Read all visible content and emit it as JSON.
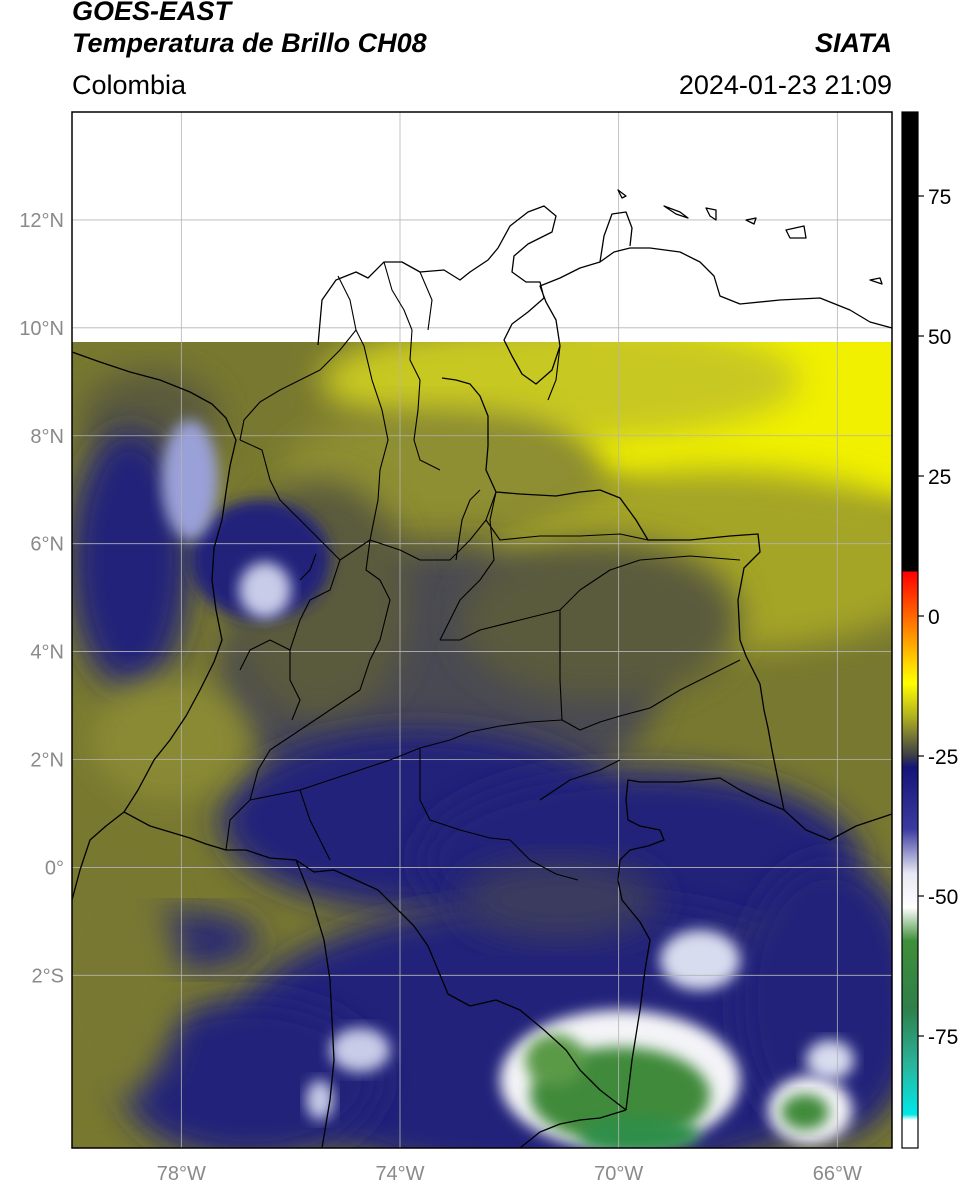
{
  "header": {
    "satellite": "GOES-EAST",
    "product": "Temperatura de Brillo CH08",
    "organization": "SIATA",
    "region": "Colombia",
    "timestamp": "2024-01-23 21:09"
  },
  "map": {
    "lon_range": [
      -80,
      -65
    ],
    "lat_range": [
      -5.2,
      14
    ],
    "data_top_lat": 9.8,
    "lat_ticks": [
      {
        "value": 12,
        "label": "12°N"
      },
      {
        "value": 10,
        "label": "10°N"
      },
      {
        "value": 8,
        "label": "8°N"
      },
      {
        "value": 6,
        "label": "6°N"
      },
      {
        "value": 4,
        "label": "4°N"
      },
      {
        "value": 2,
        "label": "2°N"
      },
      {
        "value": 0,
        "label": "0°"
      },
      {
        "value": -2,
        "label": "2°S"
      }
    ],
    "lon_ticks": [
      {
        "value": -78,
        "label": "78°W"
      },
      {
        "value": -74,
        "label": "74°W"
      },
      {
        "value": -70,
        "label": "70°W"
      },
      {
        "value": -66,
        "label": "66°W"
      }
    ],
    "grid": true,
    "palette": {
      "olive": "#787830",
      "darkolive": "#5a5a3e",
      "gray": "#4a4a52",
      "navy": "#23237a",
      "yellow": "#f0f000",
      "white": "#f4f4f8",
      "green": "#3f8a3a",
      "border": "#000000",
      "grid": "#b4b4b4",
      "tick": "#8a8a8a"
    }
  },
  "colorbar": {
    "range": [
      -95,
      90
    ],
    "ticks": [
      {
        "value": 75,
        "label": "75"
      },
      {
        "value": 50,
        "label": "50"
      },
      {
        "value": 25,
        "label": "25"
      },
      {
        "value": 0,
        "label": "0"
      },
      {
        "value": -25,
        "label": "-25"
      },
      {
        "value": -50,
        "label": "-50"
      },
      {
        "value": -75,
        "label": "-75"
      }
    ],
    "stops": [
      {
        "value": 90,
        "color": "#000000"
      },
      {
        "value": 8,
        "color": "#000000"
      },
      {
        "value": 7.9,
        "color": "#ff0000"
      },
      {
        "value": 0,
        "color": "#ff6600"
      },
      {
        "value": -8,
        "color": "#ffd000"
      },
      {
        "value": -12,
        "color": "#ffff00"
      },
      {
        "value": -18,
        "color": "#b0b020"
      },
      {
        "value": -22,
        "color": "#6e6e3a"
      },
      {
        "value": -25,
        "color": "#3c3c46"
      },
      {
        "value": -27,
        "color": "#141478"
      },
      {
        "value": -38,
        "color": "#3a3aa0"
      },
      {
        "value": -46,
        "color": "#e8e8f4"
      },
      {
        "value": -52,
        "color": "#ffffff"
      },
      {
        "value": -58,
        "color": "#3f8f3a"
      },
      {
        "value": -70,
        "color": "#2f7f4a"
      },
      {
        "value": -80,
        "color": "#2ab49a"
      },
      {
        "value": -89,
        "color": "#00e8e8"
      },
      {
        "value": -90,
        "color": "#ffffff"
      },
      {
        "value": -95,
        "color": "#ffffff"
      }
    ]
  }
}
